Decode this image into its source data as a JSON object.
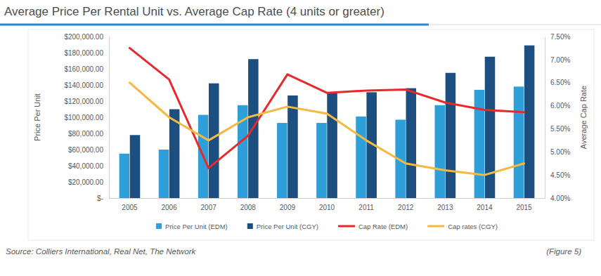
{
  "chart_data": {
    "type": "bar",
    "title": "Average Price Per Rental Unit vs. Average Cap Rate (4 units or greater)",
    "y_label": "Price Per Unit",
    "y2_label": "Average Cap Rate",
    "annotations": [
      "Source: Colliers International, Real Net, The Network",
      "(Figure 5)"
    ],
    "categories": [
      "2005",
      "2006",
      "2007",
      "2008",
      "2009",
      "2010",
      "2011",
      "2012",
      "2013",
      "2014",
      "2015"
    ],
    "series": [
      {
        "name": "Price Per Unit (EDM)",
        "type": "bar",
        "color": "#2e9fd8",
        "values": [
          55000,
          60000,
          103000,
          115000,
          93000,
          93000,
          101000,
          97000,
          115000,
          134000,
          138000
        ]
      },
      {
        "name": "Price Per Unit (CGY)",
        "type": "bar",
        "color": "#1c4f80",
        "values": [
          78000,
          110000,
          142000,
          172000,
          127000,
          130000,
          131000,
          136000,
          155000,
          175000,
          189000
        ]
      },
      {
        "name": "Cap Rate (EDM)",
        "type": "line",
        "axis": "y2",
        "color": "#e8292b",
        "values": [
          7.25,
          6.57,
          4.65,
          5.35,
          6.68,
          6.28,
          6.33,
          6.35,
          6.07,
          5.91,
          5.86
        ]
      },
      {
        "name": "Cap rates (CGY)",
        "type": "line",
        "axis": "y2",
        "color": "#f5b841",
        "values": [
          6.5,
          5.75,
          5.25,
          5.75,
          5.98,
          5.83,
          5.25,
          4.75,
          4.6,
          4.5,
          4.75
        ]
      }
    ],
    "ylim": [
      0,
      200000
    ],
    "yticks": [
      {
        "value": 0,
        "label": "$-"
      },
      {
        "value": 20000,
        "label": "$20,000.00"
      },
      {
        "value": 40000,
        "label": "$40,000.00"
      },
      {
        "value": 60000,
        "label": "$60,000.00"
      },
      {
        "value": 80000,
        "label": "$80,000.00"
      },
      {
        "value": 100000,
        "label": "$100,000.00"
      },
      {
        "value": 120000,
        "label": "$120,000.00"
      },
      {
        "value": 140000,
        "label": "$140,000.00"
      },
      {
        "value": 160000,
        "label": "$160,000.00"
      },
      {
        "value": 180000,
        "label": "$180,000.00"
      },
      {
        "value": 200000,
        "label": "$200,000.00"
      }
    ],
    "y2lim": [
      4,
      7.5
    ],
    "y2ticks": [
      {
        "value": 4,
        "label": "4.00%"
      },
      {
        "value": 4.5,
        "label": "4.50%"
      },
      {
        "value": 5,
        "label": "5.00%"
      },
      {
        "value": 5.5,
        "label": "5.50%"
      },
      {
        "value": 6,
        "label": "6.00%"
      },
      {
        "value": 6.5,
        "label": "6.50%"
      },
      {
        "value": 7,
        "label": "7.00%"
      },
      {
        "value": 7.5,
        "label": "7.50%"
      }
    ],
    "grid": false,
    "legend": "bottom"
  }
}
